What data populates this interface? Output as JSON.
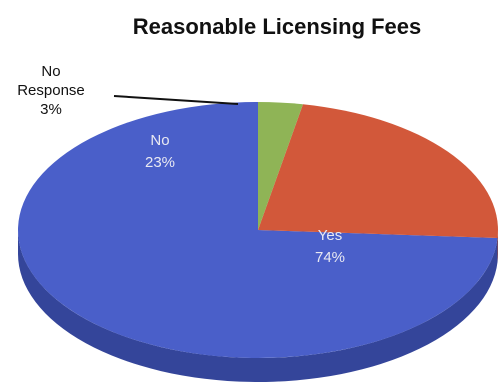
{
  "chart_data": {
    "type": "pie",
    "title": "Reasonable Licensing Fees",
    "slices": [
      {
        "label": "Yes",
        "value": 74,
        "display": "74%",
        "color": "#4a5fc9",
        "side_color": "#34459a"
      },
      {
        "label": "No",
        "value": 23,
        "display": "23%",
        "color": "#d2583a",
        "side_color": "#9e4029"
      },
      {
        "label": "No Response",
        "value": 3,
        "display": "3%",
        "color": "#8fb456",
        "side_color": "#6a8a3d"
      }
    ],
    "label_colors": {
      "on_slice": "#e9e9f2"
    },
    "callout": {
      "line1": "No",
      "line2": "Response",
      "line3": "3%"
    }
  }
}
